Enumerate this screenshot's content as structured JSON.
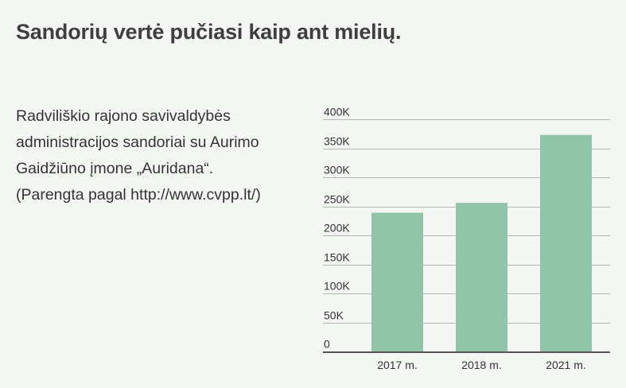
{
  "header": {
    "title": "Sandorių vertė pučiasi kaip ant mielių."
  },
  "description": {
    "lines": [
      "Radviliškio rajono savivaldybės",
      "administracijos sandoriai su Aurimo",
      "Gaidžiūno įmone „Auridana“.",
      "(Parengta pagal http://www.cvpp.lt/)"
    ]
  },
  "colors": {
    "bar": "#8fc4a6",
    "gridline": "#b5b5b5",
    "baseline": "#555555",
    "text": "#333333",
    "background": "#f4f6f4"
  },
  "chart_data": {
    "type": "bar",
    "categories": [
      "2017 m.",
      "2018 m.",
      "2021 m."
    ],
    "values": [
      239000,
      256000,
      373000
    ],
    "title": "",
    "xlabel": "",
    "ylabel": "",
    "ylim": [
      0,
      400000
    ],
    "yticks": [
      0,
      50000,
      100000,
      150000,
      200000,
      250000,
      300000,
      350000,
      400000
    ],
    "ytick_labels": [
      "0",
      "50K",
      "100K",
      "150K",
      "200K",
      "250K",
      "300K",
      "350K",
      "400K"
    ],
    "grid": true,
    "legend": "none"
  }
}
